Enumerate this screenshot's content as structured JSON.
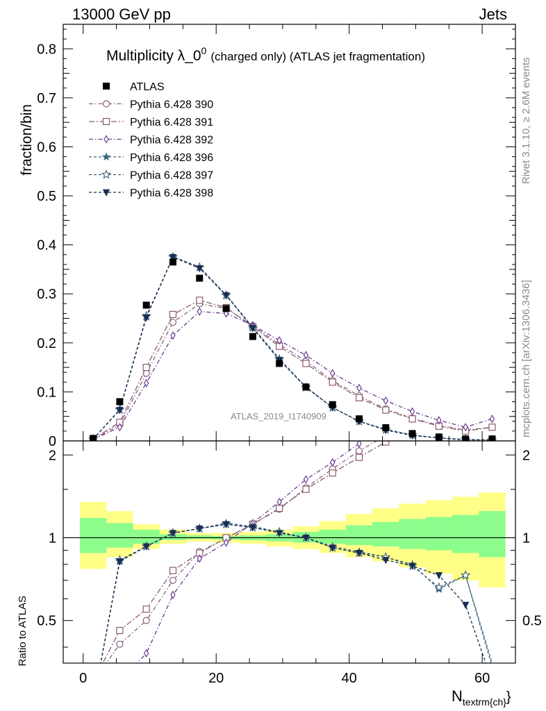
{
  "header": {
    "left": "13000 GeV pp",
    "right": "Jets"
  },
  "chart_data": {
    "type": "scatter",
    "title_main": "Multiplicity λ_0",
    "title_sup": "0",
    "title_rest": "(charged only) (ATLAS jet fragmentation)",
    "ylabel": "fraction/bin",
    "ratio_ylabel": "Ratio to ATLAS",
    "xlabel_main": "N",
    "xlabel_sub": "textrm{ch}",
    "xlabel_tail": "}",
    "watermark": "ATLAS_2019_I1740909",
    "side_top": "Rivet 3.1.10, ≥ 2.6M events",
    "side_bottom": "mcplots.cern.ch [arXiv:1306.3436]",
    "xlim": [
      -3,
      65
    ],
    "ylim": [
      0,
      0.85
    ],
    "ratio_ylim": [
      0.35,
      2.25
    ],
    "xticks": [
      0,
      20,
      40,
      60
    ],
    "yticks": [
      0,
      0.1,
      0.2,
      0.3,
      0.4,
      0.5,
      0.6,
      0.7,
      0.8
    ],
    "ratio_yticks": [
      0.5,
      1,
      2
    ],
    "x": [
      1.5,
      5.5,
      9.5,
      13.5,
      17.5,
      21.5,
      25.5,
      29.5,
      33.5,
      37.5,
      41.5,
      45.5,
      49.5,
      53.5,
      57.5,
      61.5
    ],
    "bin_edges": [
      -0.5,
      3.5,
      7.5,
      11.5,
      15.5,
      19.5,
      23.5,
      27.5,
      31.5,
      35.5,
      39.5,
      43.5,
      47.5,
      51.5,
      55.5,
      59.5,
      63.5
    ],
    "band_green": [
      [
        0.88,
        1.18
      ],
      [
        0.92,
        1.13
      ],
      [
        0.95,
        1.07
      ],
      [
        0.98,
        1.03
      ],
      [
        0.99,
        1.02
      ],
      [
        0.985,
        1.015
      ],
      [
        0.98,
        1.02
      ],
      [
        0.97,
        1.03
      ],
      [
        0.96,
        1.05
      ],
      [
        0.95,
        1.07
      ],
      [
        0.94,
        1.11
      ],
      [
        0.93,
        1.14
      ],
      [
        0.91,
        1.17
      ],
      [
        0.9,
        1.19
      ],
      [
        0.88,
        1.21
      ],
      [
        0.85,
        1.25
      ]
    ],
    "band_yellow": [
      [
        0.77,
        1.35
      ],
      [
        0.85,
        1.25
      ],
      [
        0.91,
        1.12
      ],
      [
        0.95,
        1.07
      ],
      [
        0.97,
        1.04
      ],
      [
        0.96,
        1.04
      ],
      [
        0.95,
        1.05
      ],
      [
        0.93,
        1.07
      ],
      [
        0.91,
        1.1
      ],
      [
        0.88,
        1.15
      ],
      [
        0.85,
        1.22
      ],
      [
        0.82,
        1.28
      ],
      [
        0.78,
        1.33
      ],
      [
        0.74,
        1.37
      ],
      [
        0.7,
        1.41
      ],
      [
        0.66,
        1.46
      ]
    ],
    "reference": {
      "name": "ATLAS",
      "values": [
        0.005,
        0.08,
        0.277,
        0.365,
        0.332,
        0.27,
        0.213,
        0.158,
        0.11,
        0.074,
        0.045,
        0.027,
        0.015,
        0.008,
        0.004,
        0.004
      ]
    },
    "series": [
      {
        "name": "Pythia 6.428 390",
        "color": "#86607c",
        "marker": "circle",
        "dash": "6,3,1.5,3",
        "values": [
          0.003,
          0.033,
          0.138,
          0.242,
          0.28,
          0.27,
          0.235,
          0.197,
          0.163,
          0.123,
          0.092,
          0.065,
          0.046,
          0.032,
          0.022,
          0.028
        ],
        "ratio": [
          0.3,
          0.41,
          0.5,
          0.7,
          0.89,
          0.995,
          1.12,
          1.27,
          1.52,
          1.78,
          2.07,
          2.35,
          null,
          null,
          null,
          null
        ]
      },
      {
        "name": "Pythia 6.428 391",
        "color": "#8a5a6e",
        "marker": "square",
        "dash": "8,3,2,3",
        "values": [
          0.004,
          0.038,
          0.15,
          0.258,
          0.287,
          0.272,
          0.233,
          0.193,
          0.158,
          0.12,
          0.088,
          0.063,
          0.045,
          0.03,
          0.02,
          0.028
        ],
        "ratio": [
          0.3,
          0.46,
          0.55,
          0.76,
          0.88,
          1.0,
          1.12,
          1.28,
          1.5,
          1.72,
          1.96,
          2.23,
          null,
          null,
          null,
          null
        ]
      },
      {
        "name": "Pythia 6.428 392",
        "color": "#6a3b92",
        "marker": "diamond",
        "dash": "6,3,1.5,3",
        "values": [
          0.003,
          0.028,
          0.118,
          0.215,
          0.264,
          0.26,
          0.236,
          0.205,
          0.175,
          0.138,
          0.108,
          0.082,
          0.06,
          0.042,
          0.028,
          0.045
        ],
        "ratio": [
          0.25,
          0.3,
          0.38,
          0.62,
          0.84,
          0.96,
          1.13,
          1.35,
          1.63,
          1.88,
          2.2,
          null,
          null,
          null,
          null,
          null
        ]
      },
      {
        "name": "Pythia 6.428 396",
        "color": "#3d6a82",
        "marker": "star-filled",
        "dash": "4,3",
        "values": [
          0.004,
          0.063,
          0.253,
          0.376,
          0.355,
          0.298,
          0.232,
          0.168,
          0.11,
          0.068,
          0.04,
          0.024,
          0.012,
          0.006,
          0.003,
          0.002
        ],
        "ratio": [
          0.25,
          0.82,
          0.93,
          1.04,
          1.08,
          1.13,
          1.1,
          1.05,
          1.0,
          0.93,
          0.89,
          0.85,
          0.8,
          0.65,
          0.73,
          0.35
        ]
      },
      {
        "name": "Pythia 6.428 397",
        "color": "#3a5d78",
        "marker": "star-open",
        "dash": "4,3",
        "values": [
          0.004,
          0.064,
          0.255,
          0.375,
          0.354,
          0.297,
          0.231,
          0.166,
          0.109,
          0.068,
          0.04,
          0.023,
          0.012,
          0.006,
          0.003,
          0.002
        ],
        "ratio": [
          0.25,
          0.83,
          0.93,
          1.04,
          1.08,
          1.12,
          1.09,
          1.05,
          1.0,
          0.92,
          0.88,
          0.85,
          0.79,
          0.66,
          0.73,
          0.34
        ]
      },
      {
        "name": "Pythia 6.428 398",
        "color": "#1a2d52",
        "marker": "triangle-down",
        "dash": "4,3",
        "values": [
          0.004,
          0.063,
          0.252,
          0.375,
          0.352,
          0.297,
          0.23,
          0.165,
          0.11,
          0.068,
          0.04,
          0.022,
          0.011,
          0.006,
          0.002,
          0.002
        ],
        "ratio": [
          0.25,
          0.82,
          0.93,
          1.04,
          1.08,
          1.12,
          1.09,
          1.04,
          1.0,
          0.92,
          0.88,
          0.83,
          0.79,
          0.73,
          0.57,
          0.3
        ]
      }
    ]
  }
}
